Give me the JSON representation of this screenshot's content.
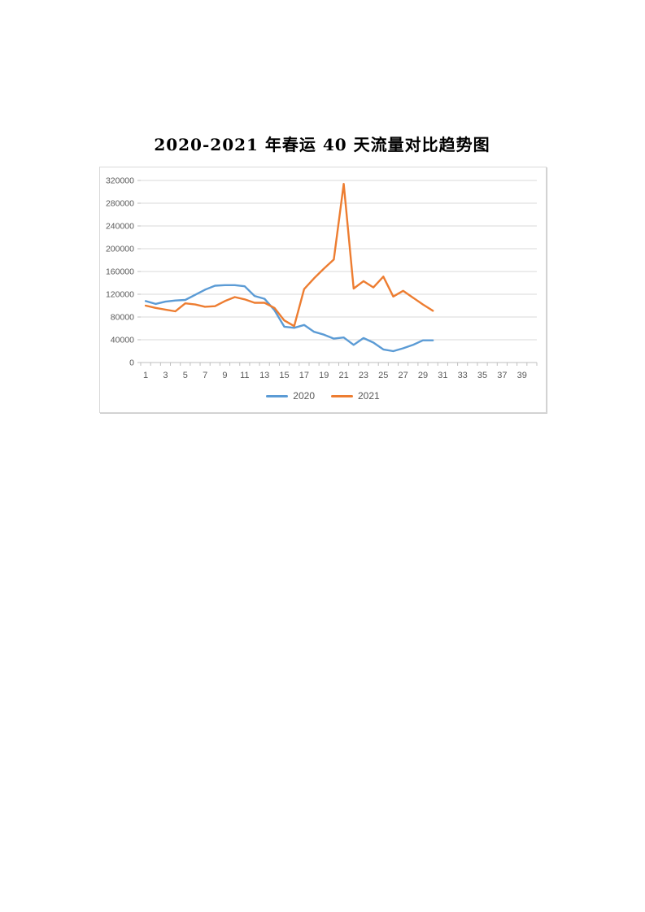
{
  "page": {
    "title": "2020-2021 年春运 40 天流量对比趋势图"
  },
  "chart_data": {
    "type": "line",
    "title": "2020-2021 年春运 40 天流量对比趋势图",
    "xlabel": "",
    "ylabel": "",
    "x_categories_range": [
      1,
      40
    ],
    "x_tick_labels": [
      "1",
      "3",
      "5",
      "7",
      "9",
      "11",
      "13",
      "15",
      "17",
      "19",
      "21",
      "23",
      "25",
      "27",
      "29",
      "31",
      "33",
      "35",
      "37",
      "39"
    ],
    "ylim": [
      0,
      320000
    ],
    "y_tick_step": 40000,
    "y_tick_labels": [
      "0",
      "40000",
      "80000",
      "120000",
      "160000",
      "200000",
      "240000",
      "280000",
      "320000"
    ],
    "grid": true,
    "legend_position": "bottom",
    "series": [
      {
        "name": "2020",
        "color": "#5B9BD5",
        "x": [
          1,
          2,
          3,
          4,
          5,
          6,
          7,
          8,
          9,
          10,
          11,
          12,
          13,
          14,
          15,
          16,
          17,
          18,
          19,
          20,
          21,
          22,
          23,
          24,
          25,
          26,
          27,
          28,
          29,
          30
        ],
        "values": [
          108000,
          103000,
          107000,
          109000,
          110000,
          119000,
          128000,
          135000,
          136000,
          136000,
          134000,
          117000,
          112000,
          92000,
          63000,
          61000,
          66000,
          54000,
          49000,
          42000,
          44000,
          31000,
          43000,
          35000,
          23000,
          20000,
          25000,
          31000,
          39000,
          39000
        ]
      },
      {
        "name": "2021",
        "color": "#ED7D31",
        "x": [
          1,
          2,
          3,
          4,
          5,
          6,
          7,
          8,
          9,
          10,
          11,
          12,
          13,
          14,
          15,
          16,
          17,
          18,
          19,
          20,
          21,
          22,
          23,
          24,
          25,
          26,
          27,
          28,
          29,
          30
        ],
        "values": [
          100000,
          96000,
          93000,
          90000,
          104000,
          102000,
          98000,
          99000,
          108000,
          115000,
          111000,
          105000,
          105000,
          96000,
          74000,
          64000,
          129000,
          148000,
          165000,
          181000,
          314000,
          130000,
          143000,
          132000,
          151000,
          116000,
          126000,
          114000,
          102000,
          91000
        ]
      }
    ],
    "colors": {
      "grid": "#D9D9D9",
      "axis": "#BFBFBF",
      "tick_label": "#595959",
      "title": "#000000",
      "plot_background": "#FFFFFF"
    }
  }
}
